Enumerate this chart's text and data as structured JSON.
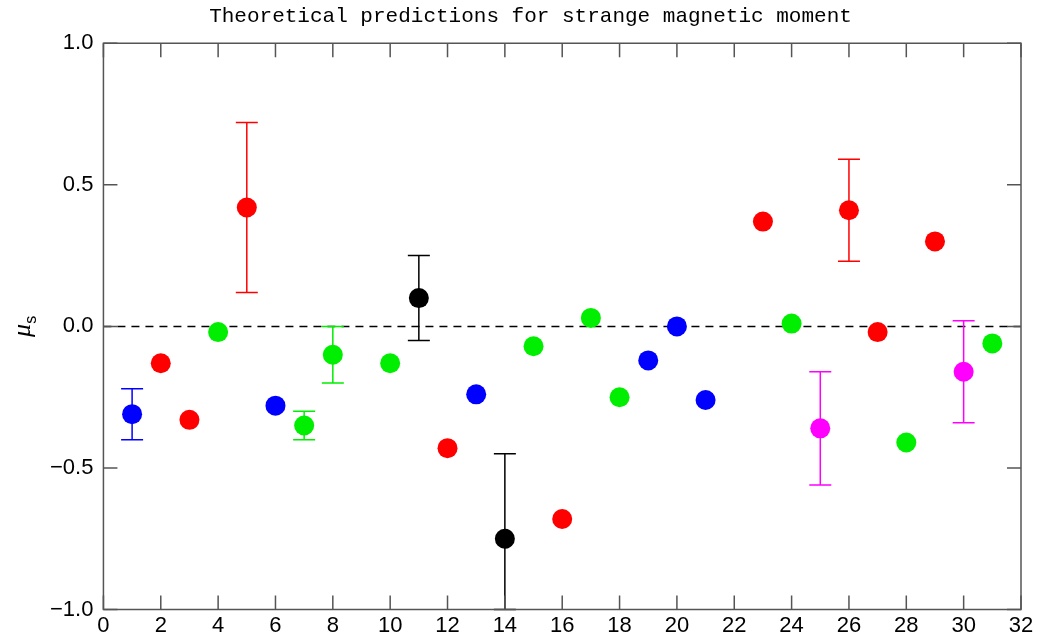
{
  "chart_data": {
    "type": "scatter",
    "title": "Theoretical predictions for strange magnetic moment",
    "ylabel": "μ$_{s}$",
    "series": [
      {
        "color": "#0000ff",
        "x": [
          1,
          6,
          13,
          19,
          20,
          21
        ],
        "values": [
          -0.31,
          -0.28,
          -0.24,
          -0.12,
          0.0,
          -0.26
        ],
        "errors": [
          [
            -0.4,
            -0.22
          ],
          null,
          null,
          null,
          null,
          null
        ]
      },
      {
        "color": "#ff0000",
        "x": [
          2,
          3,
          5,
          12,
          16,
          23,
          26,
          27,
          29
        ],
        "values": [
          -0.13,
          -0.33,
          0.42,
          -0.43,
          -0.68,
          0.37,
          0.41,
          -0.02,
          0.3
        ],
        "errors": [
          null,
          null,
          [
            0.12,
            0.72
          ],
          null,
          null,
          null,
          [
            0.23,
            0.59
          ],
          null,
          null
        ]
      },
      {
        "color": "#00ee00",
        "x": [
          4,
          7,
          8,
          10,
          15,
          17,
          18,
          24,
          28,
          31
        ],
        "values": [
          -0.02,
          -0.35,
          -0.1,
          -0.13,
          -0.07,
          0.03,
          -0.25,
          0.01,
          -0.41,
          -0.06
        ],
        "errors": [
          null,
          [
            -0.4,
            -0.3
          ],
          [
            -0.2,
            0.0
          ],
          null,
          null,
          null,
          null,
          null,
          null,
          null
        ]
      },
      {
        "color": "#000000",
        "x": [
          11,
          14
        ],
        "values": [
          0.1,
          -0.75
        ],
        "errors": [
          [
            -0.05,
            0.25
          ],
          [
            -1.0,
            -0.45
          ]
        ]
      },
      {
        "color": "#ff00ff",
        "x": [
          25,
          30
        ],
        "values": [
          -0.36,
          -0.16
        ],
        "errors": [
          [
            -0.56,
            -0.16
          ],
          [
            -0.34,
            0.02
          ]
        ]
      }
    ],
    "xlim": [
      0,
      32
    ],
    "xticks": [
      0,
      2,
      4,
      6,
      8,
      10,
      12,
      14,
      16,
      18,
      20,
      22,
      24,
      26,
      28,
      30,
      32
    ],
    "ylim": [
      -1.0,
      1.0
    ],
    "yticks": [
      {
        "value": -1.0,
        "label": "−1.0"
      },
      {
        "value": -0.5,
        "label": "−0.5"
      },
      {
        "value": 0.0,
        "label": "0.0"
      },
      {
        "value": 0.5,
        "label": "0.5"
      },
      {
        "value": 1.0,
        "label": "1.0"
      }
    ],
    "ref_lines": [
      {
        "axis": "y",
        "value": 0,
        "line_style": "dashed",
        "color": "#000000"
      }
    ],
    "marker": "circle",
    "grid": false,
    "legend": false
  }
}
